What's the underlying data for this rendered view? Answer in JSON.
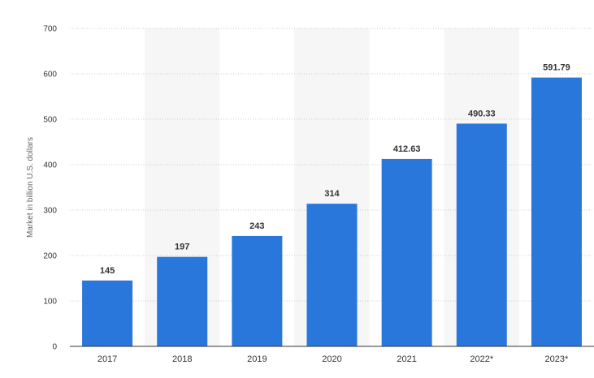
{
  "chart_data": {
    "type": "bar",
    "title": "",
    "xlabel": "",
    "ylabel": "Market in billion U.S. dollars",
    "categories": [
      "2017",
      "2018",
      "2019",
      "2020",
      "2021",
      "2022*",
      "2023*"
    ],
    "values": [
      145,
      197,
      243,
      314,
      412.63,
      490.33,
      591.79
    ],
    "value_labels": [
      "145",
      "197",
      "243",
      "314",
      "412.63",
      "490.33",
      "591.79"
    ],
    "ylim": [
      0,
      700
    ],
    "yticks": [
      0,
      100,
      200,
      300,
      400,
      500,
      600,
      700
    ],
    "grid": true,
    "grid_style": "dotted",
    "alternating_column_shading": true,
    "legend": "none",
    "colors": {
      "bar": "#2a77dc",
      "column_shade": "#f6f6f6",
      "grid": "#cccccc",
      "axis": "#333333"
    }
  }
}
